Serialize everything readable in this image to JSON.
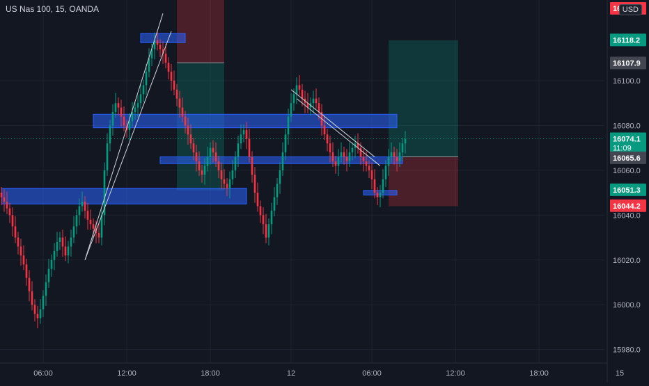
{
  "header": {
    "symbol_title": "US Nas 100, 15, OANDA",
    "currency_label": "USD"
  },
  "chart_data": {
    "type": "candlestick",
    "title": "US Nas 100, 15, OANDA",
    "ylim": [
      15974,
      16136
    ],
    "y_ticks": [
      15980.0,
      16000.0,
      16020.0,
      16040.0,
      16060.0,
      16080.0,
      16100.0
    ],
    "x_ticks": [
      "06:00",
      "12:00",
      "18:00",
      "12",
      "06:00",
      "12:00",
      "18:00",
      "15"
    ],
    "x_tick_index": [
      15,
      45,
      75,
      104,
      133,
      163,
      193,
      222
    ],
    "close_series": [
      16048,
      16046,
      16043,
      16040,
      16035,
      16030,
      16026,
      16022,
      16018,
      16012,
      16006,
      16000,
      15996,
      15994,
      15998,
      16004,
      16010,
      16016,
      16020,
      16024,
      16028,
      16030,
      16026,
      16022,
      16026,
      16030,
      16035,
      16040,
      16044,
      16046,
      16042,
      16038,
      16036,
      16034,
      16032,
      16030,
      16040,
      16060,
      16072,
      16080,
      16086,
      16090,
      16088,
      16084,
      16080,
      16078,
      16082,
      16086,
      16088,
      16090,
      16094,
      16098,
      16104,
      16110,
      16114,
      16118,
      16116,
      16114,
      16112,
      16108,
      16104,
      16100,
      16096,
      16092,
      16088,
      16084,
      16080,
      16076,
      16072,
      16068,
      16064,
      16060,
      16058,
      16062,
      16066,
      16070,
      16068,
      16064,
      16060,
      16056,
      16054,
      16052,
      16056,
      16060,
      16066,
      16072,
      16076,
      16078,
      16074,
      16066,
      16058,
      16050,
      16044,
      16040,
      16036,
      16030,
      16036,
      16042,
      16048,
      16054,
      16060,
      16068,
      16076,
      16084,
      16090,
      16094,
      16098,
      16096,
      16092,
      16090,
      16088,
      16090,
      16092,
      16090,
      16086,
      16080,
      16076,
      16072,
      16068,
      16064,
      16062,
      16066,
      16068,
      16066,
      16064,
      16068,
      16070,
      16072,
      16070,
      16066,
      16064,
      16062,
      16060,
      16056,
      16050,
      16048,
      16050,
      16056,
      16062,
      16066,
      16068,
      16066,
      16064,
      16068,
      16072,
      16074
    ],
    "price_labels": [
      {
        "text": "16118.2",
        "value": 16118.2,
        "color": "#089981"
      },
      {
        "text": "16107.9",
        "value": 16107.9,
        "color": "#434651"
      },
      {
        "text": "16074.1",
        "value": 16074.1,
        "color": "#089981",
        "countdown": "11:09"
      },
      {
        "text": "16065.6",
        "value": 16065.6,
        "color": "#434651"
      },
      {
        "text": "16051.3",
        "value": 16051.3,
        "color": "#089981"
      },
      {
        "text": "16044.2",
        "value": 16044.2,
        "color": "#f23645"
      },
      {
        "text": "16132.2",
        "value": 16132.2,
        "color": "#f23645"
      }
    ],
    "zones": [
      {
        "name": "supply-zone-top",
        "x_index": [
          50,
          66
        ],
        "y": [
          16117,
          16121
        ]
      },
      {
        "name": "zone-16083",
        "x_index": [
          33,
          142
        ],
        "y": [
          16079,
          16085
        ]
      },
      {
        "name": "zone-16066",
        "x_index": [
          57,
          144
        ],
        "y": [
          16063,
          16066
        ]
      },
      {
        "name": "zone-16048",
        "x_index": [
          0,
          88
        ],
        "y": [
          16045,
          16052
        ]
      },
      {
        "name": "zone-16049",
        "x_index": [
          130,
          142
        ],
        "y": [
          16049,
          16051
        ]
      }
    ],
    "positions": [
      {
        "name": "position-1-risk",
        "x_index": [
          63,
          80
        ],
        "y": [
          16108,
          16137
        ],
        "color": "red"
      },
      {
        "name": "position-1-target",
        "x_index": [
          63,
          80
        ],
        "y": [
          16051,
          16108
        ],
        "color": "green"
      },
      {
        "name": "position-2-target",
        "x_index": [
          139,
          164
        ],
        "y": [
          16066,
          16118
        ],
        "color": "green"
      },
      {
        "name": "position-2-risk",
        "x_index": [
          139,
          164
        ],
        "y": [
          16044,
          16066
        ],
        "color": "red"
      }
    ],
    "current_price": 16074.1,
    "colors": {
      "up": "#089981",
      "down": "#f23645",
      "zone": "#2962ff"
    }
  }
}
